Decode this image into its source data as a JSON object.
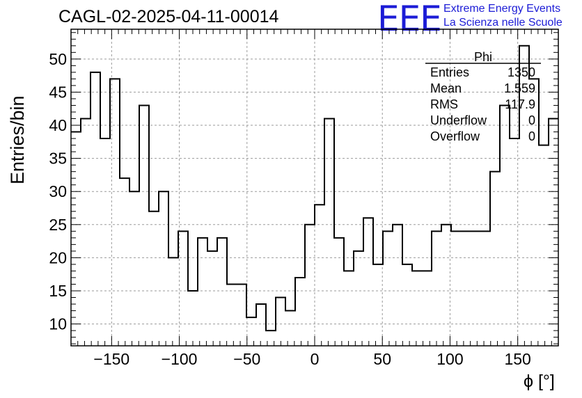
{
  "header": {
    "run_title": "CAGL-02-2025-04-11-00014",
    "logo_text": "EEE",
    "logo_line1": "Extreme Energy Events",
    "logo_line2": "La Scienza nelle Scuole"
  },
  "stats_box": {
    "title": "Phi",
    "rows": [
      {
        "label": "Entries",
        "value": "1350"
      },
      {
        "label": "Mean",
        "value": "1.559"
      },
      {
        "label": "RMS",
        "value": "117.9"
      },
      {
        "label": "Underflow",
        "value": "0"
      },
      {
        "label": "Overflow",
        "value": "0"
      }
    ]
  },
  "colors": {
    "line": "#000000",
    "grid": "#9a9a9a",
    "logo": "#1c1cd6"
  },
  "chart_data": {
    "type": "histogram",
    "title": "CAGL-02-2025-04-11-00014",
    "xlabel": "ϕ [°]",
    "ylabel": "Entries/bin",
    "xlim": [
      -180,
      180
    ],
    "ylim": [
      6.7,
      54.5
    ],
    "grid": true,
    "bin_width": 7.2,
    "bin_edges_start": -180,
    "x_ticks": [
      -150,
      -100,
      -50,
      0,
      50,
      100,
      150
    ],
    "x_tick_labels": [
      "−150",
      "−100",
      "−50",
      "0",
      "50",
      "100",
      "150"
    ],
    "y_ticks": [
      10,
      15,
      20,
      25,
      30,
      35,
      40,
      45,
      50
    ],
    "y_tick_labels": [
      "10",
      "15",
      "20",
      "25",
      "30",
      "35",
      "40",
      "45",
      "50"
    ],
    "values": [
      39,
      41,
      48,
      38,
      47,
      32,
      30,
      43,
      27,
      30,
      20,
      24,
      15,
      23,
      21,
      23,
      16,
      16,
      11,
      13,
      9,
      14,
      12,
      17,
      25,
      28,
      41,
      23,
      18,
      21,
      26,
      19,
      24,
      25,
      19,
      18,
      18,
      24,
      25,
      24,
      24,
      24,
      24,
      33,
      43,
      38,
      52,
      47,
      37,
      41
    ]
  }
}
